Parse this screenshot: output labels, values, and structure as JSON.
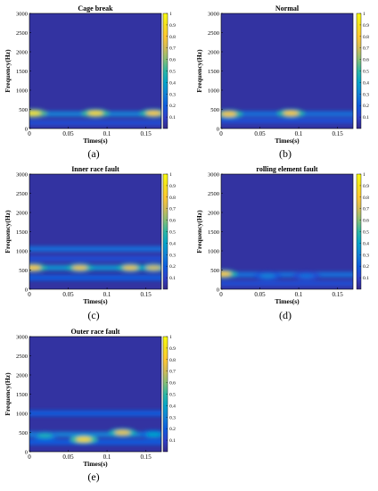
{
  "chart_data": [
    {
      "type": "heatmap",
      "label": "(a)",
      "title": "Cage break",
      "xlabel": "Times(s)",
      "ylabel": "Frequency(Hz)",
      "xlim": [
        0,
        0.17
      ],
      "ylim": [
        0,
        3000
      ],
      "xticks": [
        "0",
        "0.05",
        "0.1",
        "0.15"
      ],
      "xtick_values": [
        0,
        0.05,
        0.1,
        0.15
      ],
      "yticks": [
        "0",
        "500",
        "1000",
        "1500",
        "2000",
        "2500",
        "3000"
      ],
      "ytick_values": [
        0,
        500,
        1000,
        1500,
        2000,
        2500,
        3000
      ],
      "colorbar": {
        "range": [
          0,
          1
        ],
        "ticks": [
          "0.1",
          "0.2",
          "0.3",
          "0.4",
          "0.5",
          "0.6",
          "0.7",
          "0.8",
          "0.9",
          "1"
        ],
        "tick_values": [
          0.1,
          0.2,
          0.3,
          0.4,
          0.5,
          0.6,
          0.7,
          0.8,
          0.9,
          1
        ]
      },
      "hotspots": [
        {
          "t": 0.005,
          "f": 400,
          "value": 0.9
        },
        {
          "t": 0.085,
          "f": 400,
          "value": 0.85
        },
        {
          "t": 0.16,
          "f": 400,
          "value": 0.8
        }
      ],
      "bands": [
        {
          "f": 380,
          "value": 0.3
        },
        {
          "f": 150,
          "value": 0.15
        }
      ]
    },
    {
      "type": "heatmap",
      "label": "(b)",
      "title": "Normal",
      "xlabel": "Times(s)",
      "ylabel": "Frequency(Hz)",
      "xlim": [
        0,
        0.17
      ],
      "ylim": [
        0,
        3000
      ],
      "xticks": [
        "0",
        "0.05",
        "0.1",
        "0.15"
      ],
      "xtick_values": [
        0,
        0.05,
        0.1,
        0.15
      ],
      "yticks": [
        "0",
        "500",
        "1000",
        "1500",
        "2000",
        "2500",
        "3000"
      ],
      "ytick_values": [
        0,
        500,
        1000,
        1500,
        2000,
        2500,
        3000
      ],
      "colorbar": {
        "range": [
          0,
          1
        ],
        "ticks": [
          "0.1",
          "0.2",
          "0.3",
          "0.4",
          "0.5",
          "0.6",
          "0.7",
          "0.8",
          "0.9",
          "1"
        ],
        "tick_values": [
          0.1,
          0.2,
          0.3,
          0.4,
          0.5,
          0.6,
          0.7,
          0.8,
          0.9,
          1
        ]
      },
      "hotspots": [
        {
          "t": 0.01,
          "f": 380,
          "value": 0.8
        },
        {
          "t": 0.09,
          "f": 400,
          "value": 0.8
        }
      ],
      "bands": [
        {
          "f": 380,
          "value": 0.25
        },
        {
          "f": 200,
          "value": 0.15
        }
      ]
    },
    {
      "type": "heatmap",
      "label": "(c)",
      "title": "Inner race fault",
      "xlabel": "Times(s)",
      "ylabel": "Frequency(Hz)",
      "xlim": [
        0,
        0.17
      ],
      "ylim": [
        0,
        3000
      ],
      "xticks": [
        "0",
        "0.05",
        "0.1",
        "0.15"
      ],
      "xtick_values": [
        0,
        0.05,
        0.1,
        0.15
      ],
      "yticks": [
        "0",
        "500",
        "1000",
        "1500",
        "2000",
        "2500",
        "3000"
      ],
      "ytick_values": [
        0,
        500,
        1000,
        1500,
        2000,
        2500,
        3000
      ],
      "colorbar": {
        "range": [
          0,
          1
        ],
        "ticks": [
          "0.1",
          "0.2",
          "0.3",
          "0.4",
          "0.5",
          "0.6",
          "0.7",
          "0.8",
          "0.9",
          "1"
        ],
        "tick_values": [
          0.1,
          0.2,
          0.3,
          0.4,
          0.5,
          0.6,
          0.7,
          0.8,
          0.9,
          1
        ]
      },
      "hotspots": [
        {
          "t": 0.005,
          "f": 560,
          "value": 0.8
        },
        {
          "t": 0.065,
          "f": 560,
          "value": 0.75
        },
        {
          "t": 0.13,
          "f": 560,
          "value": 0.75
        },
        {
          "t": 0.16,
          "f": 560,
          "value": 0.7
        }
      ],
      "bands": [
        {
          "f": 560,
          "value": 0.35
        },
        {
          "f": 1050,
          "value": 0.25
        },
        {
          "f": 800,
          "value": 0.15
        },
        {
          "f": 300,
          "value": 0.2
        }
      ]
    },
    {
      "type": "heatmap",
      "label": "(d)",
      "title": "rolling element fault",
      "xlabel": "Times(s)",
      "ylabel": "Frequency(Hz)",
      "xlim": [
        0,
        0.17
      ],
      "ylim": [
        0,
        3000
      ],
      "xticks": [
        "0",
        "0.05",
        "0.1",
        "0.15"
      ],
      "xtick_values": [
        0,
        0.05,
        0.1,
        0.15
      ],
      "yticks": [
        "0",
        "500",
        "1000",
        "1500",
        "2000",
        "2500",
        "3000"
      ],
      "ytick_values": [
        0,
        500,
        1000,
        1500,
        2000,
        2500,
        3000
      ],
      "colorbar": {
        "range": [
          0,
          1
        ],
        "ticks": [
          "0.1",
          "0.2",
          "0.3",
          "0.4",
          "0.5",
          "0.6",
          "0.7",
          "0.8",
          "0.9",
          "1"
        ],
        "tick_values": [
          0.1,
          0.2,
          0.3,
          0.4,
          0.5,
          0.6,
          0.7,
          0.8,
          0.9,
          1
        ]
      },
      "hotspots": [
        {
          "t": 0.003,
          "f": 400,
          "value": 0.8
        },
        {
          "t": 0.06,
          "f": 350,
          "value": 0.3
        },
        {
          "t": 0.11,
          "f": 350,
          "value": 0.25
        }
      ],
      "bands": [
        {
          "f": 380,
          "value": 0.25
        },
        {
          "f": 150,
          "value": 0.15
        }
      ]
    },
    {
      "type": "heatmap",
      "label": "(e)",
      "title": "Outer race fault",
      "xlabel": "Times(s)",
      "ylabel": "Frequency(Hz)",
      "xlim": [
        0,
        0.17
      ],
      "ylim": [
        0,
        3000
      ],
      "xticks": [
        "0",
        "0.05",
        "0.1",
        "0.15"
      ],
      "xtick_values": [
        0,
        0.05,
        0.1,
        0.15
      ],
      "yticks": [
        "0",
        "500",
        "1000",
        "1500",
        "2000",
        "2500",
        "3000"
      ],
      "ytick_values": [
        0,
        500,
        1000,
        1500,
        2000,
        2500,
        3000
      ],
      "colorbar": {
        "range": [
          0,
          1
        ],
        "ticks": [
          "0.1",
          "0.2",
          "0.3",
          "0.4",
          "0.5",
          "0.6",
          "0.7",
          "0.8",
          "0.9",
          "1"
        ],
        "tick_values": [
          0.1,
          0.2,
          0.3,
          0.4,
          0.5,
          0.6,
          0.7,
          0.8,
          0.9,
          1
        ]
      },
      "hotspots": [
        {
          "t": 0.07,
          "f": 320,
          "value": 0.85
        },
        {
          "t": 0.12,
          "f": 500,
          "value": 0.75
        },
        {
          "t": 0.02,
          "f": 420,
          "value": 0.45
        },
        {
          "t": 0.16,
          "f": 450,
          "value": 0.4
        }
      ],
      "bands": [
        {
          "f": 450,
          "value": 0.3
        },
        {
          "f": 1000,
          "value": 0.2
        },
        {
          "f": 250,
          "value": 0.2
        }
      ]
    }
  ]
}
